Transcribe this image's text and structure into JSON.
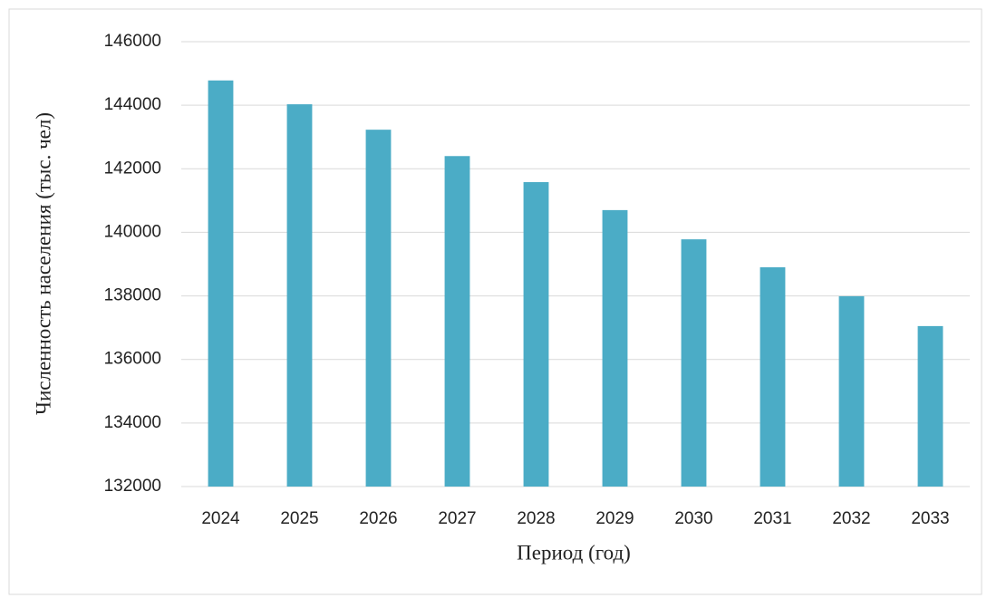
{
  "chart_data": {
    "type": "bar",
    "x_label": "Период (год)",
    "y_label": "Численность населения (тыс. чел)",
    "categories": [
      "2024",
      "2025",
      "2026",
      "2027",
      "2028",
      "2029",
      "2030",
      "2031",
      "2032",
      "2033"
    ],
    "values": [
      144780,
      144030,
      143230,
      142400,
      141580,
      140700,
      139780,
      138900,
      137990,
      137050
    ],
    "color": "#4bacc6",
    "ylim": [
      132000,
      146000
    ],
    "yticks": [
      132000,
      134000,
      136000,
      138000,
      140000,
      142000,
      144000,
      146000
    ],
    "grid": true
  }
}
